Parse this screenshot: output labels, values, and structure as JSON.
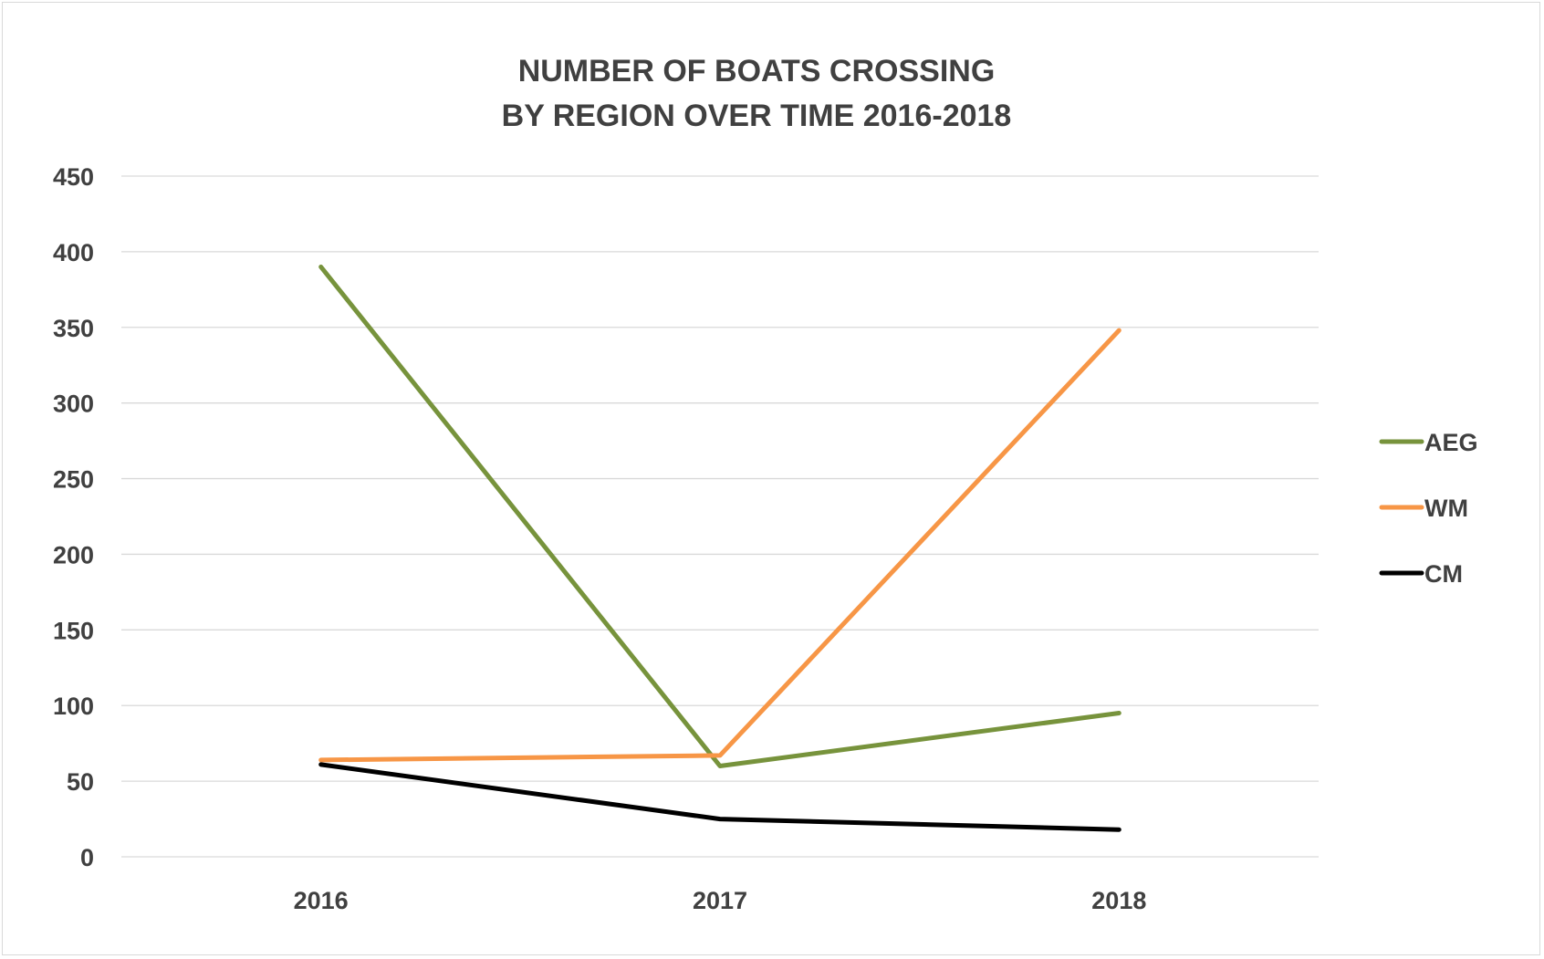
{
  "chart_data": {
    "type": "line",
    "title": [
      "NUMBER OF BOATS CROSSING",
      "BY REGION OVER TIME 2016-2018"
    ],
    "xlabel": "",
    "ylabel": "",
    "categories": [
      "2016",
      "2017",
      "2018"
    ],
    "ylim": [
      0,
      450
    ],
    "yticks": [
      0,
      50,
      100,
      150,
      200,
      250,
      300,
      350,
      400,
      450
    ],
    "grid": true,
    "legend_position": "right",
    "series": [
      {
        "name": "AEG",
        "color": "#77933c",
        "values": [
          390,
          60,
          95
        ]
      },
      {
        "name": "WM",
        "color": "#f79646",
        "values": [
          64,
          67,
          348
        ]
      },
      {
        "name": "CM",
        "color": "#000000",
        "values": [
          61,
          25,
          18
        ]
      }
    ]
  }
}
